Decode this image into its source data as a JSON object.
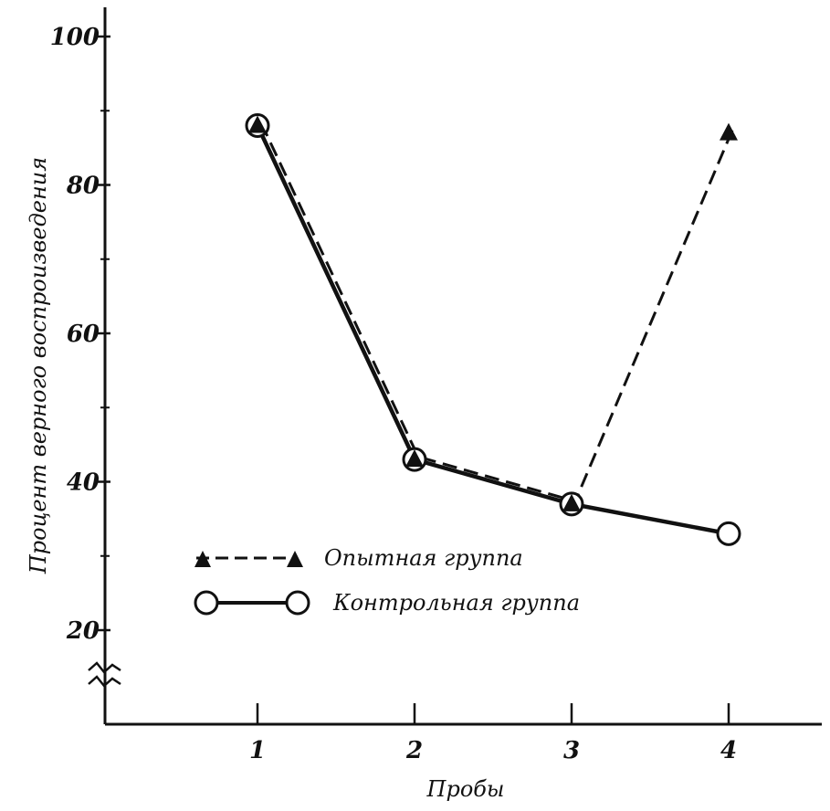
{
  "chart_data": {
    "type": "line",
    "title": "",
    "xlabel": "Пробы",
    "ylabel": "Процент верного воспроизведения",
    "categories": [
      "1",
      "2",
      "3",
      "4"
    ],
    "y_ticks": [
      "100",
      "80",
      "60",
      "40",
      "20"
    ],
    "y_tick_values": [
      100,
      80,
      60,
      40,
      20
    ],
    "y_minor_ticks": [
      90,
      70,
      50,
      30
    ],
    "ylim": [
      10,
      100
    ],
    "axis_break": true,
    "grid": false,
    "legend_position": "bottom-center",
    "series": [
      {
        "name": "Опытная группа",
        "marker": "triangle",
        "line": "dashed",
        "color": "#111111",
        "values": [
          88,
          43,
          37,
          87
        ]
      },
      {
        "name": "Контрольная группа",
        "marker": "open-circle",
        "line": "solid",
        "color": "#111111",
        "values": [
          88,
          43,
          37,
          33
        ]
      }
    ]
  }
}
